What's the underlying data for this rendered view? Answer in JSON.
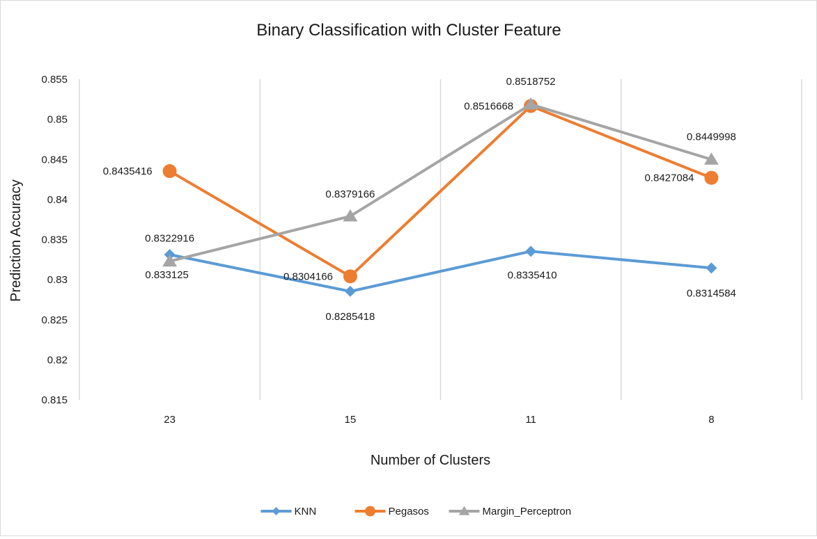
{
  "chart_data": {
    "type": "line",
    "title": "Binary Classification with Cluster Feature",
    "xlabel": "Number of Clusters",
    "ylabel": "Prediction Accuracy",
    "categories": [
      "23",
      "15",
      "11",
      "8"
    ],
    "ylim": [
      0.815,
      0.855
    ],
    "yticks": [
      "0.815",
      "0.82",
      "0.825",
      "0.83",
      "0.835",
      "0.84",
      "0.845",
      "0.85",
      "0.855"
    ],
    "grid": "vertical",
    "legend_position": "bottom",
    "series": [
      {
        "name": "KNN",
        "color": "#5b9bd5",
        "marker": "diamond",
        "values": [
          0.833125,
          0.8285418,
          0.833541,
          0.8314584
        ],
        "labels": [
          "0.833125",
          "0.8285418",
          "0.8335410",
          "0.8314584"
        ]
      },
      {
        "name": "Pegasos",
        "color": "#ed7d31",
        "marker": "circle",
        "values": [
          0.8435416,
          0.8304166,
          0.8516668,
          0.8427084
        ],
        "labels": [
          "0.8435416",
          "0.8304166",
          "0.8516668",
          "0.8427084"
        ]
      },
      {
        "name": "Margin_Perceptron",
        "color": "#a5a5a5",
        "marker": "triangle",
        "values": [
          0.8322916,
          0.8379166,
          0.8518752,
          0.8449998
        ],
        "labels": [
          "0.8322916",
          "0.8379166",
          "0.8518752",
          "0.8449998"
        ]
      }
    ]
  }
}
